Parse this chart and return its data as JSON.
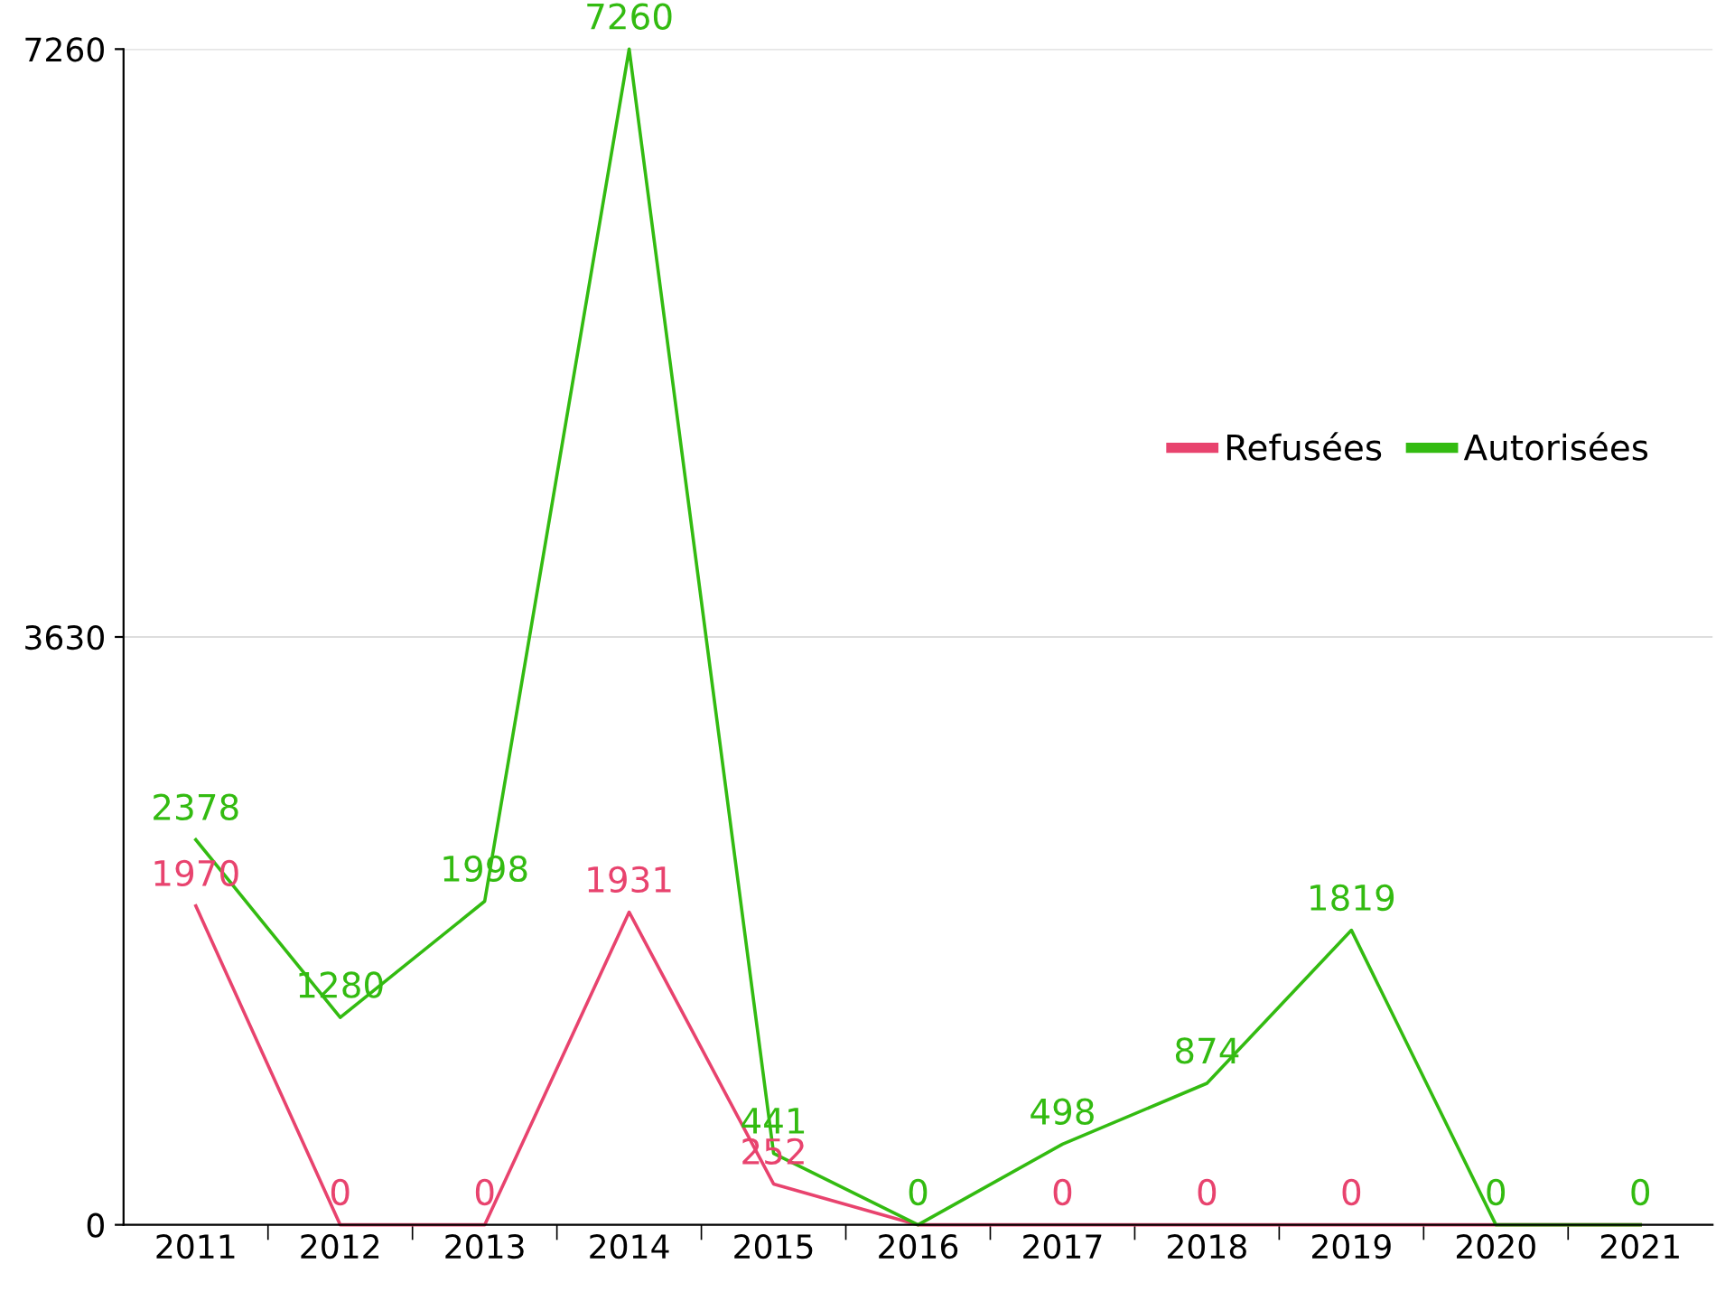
{
  "chart_data": {
    "type": "line",
    "categories": [
      "2011",
      "2012",
      "2013",
      "2014",
      "2015",
      "2016",
      "2017",
      "2018",
      "2019",
      "2020",
      "2021"
    ],
    "series": [
      {
        "name": "Refusées",
        "color": "#e8436e",
        "values": [
          1970,
          0,
          0,
          1931,
          252,
          0,
          0,
          0,
          0,
          0,
          0
        ],
        "value_labels": [
          "1970",
          "0",
          "0",
          "1931",
          "252",
          null,
          "0",
          "0",
          "0",
          null,
          null
        ]
      },
      {
        "name": "Autorisées",
        "color": "#33bb11",
        "values": [
          2378,
          1280,
          1998,
          7260,
          441,
          0,
          498,
          874,
          1819,
          0,
          0
        ],
        "value_labels": [
          "2378",
          "1280",
          "1998",
          "7260",
          "441",
          "0",
          "498",
          "874",
          "1819",
          "0",
          "0"
        ]
      }
    ],
    "ylim": [
      0,
      7260
    ],
    "yticks": [
      0,
      3630,
      7260
    ],
    "grid": "y",
    "legend": "top right",
    "marker": "none",
    "line_style": "solid"
  }
}
